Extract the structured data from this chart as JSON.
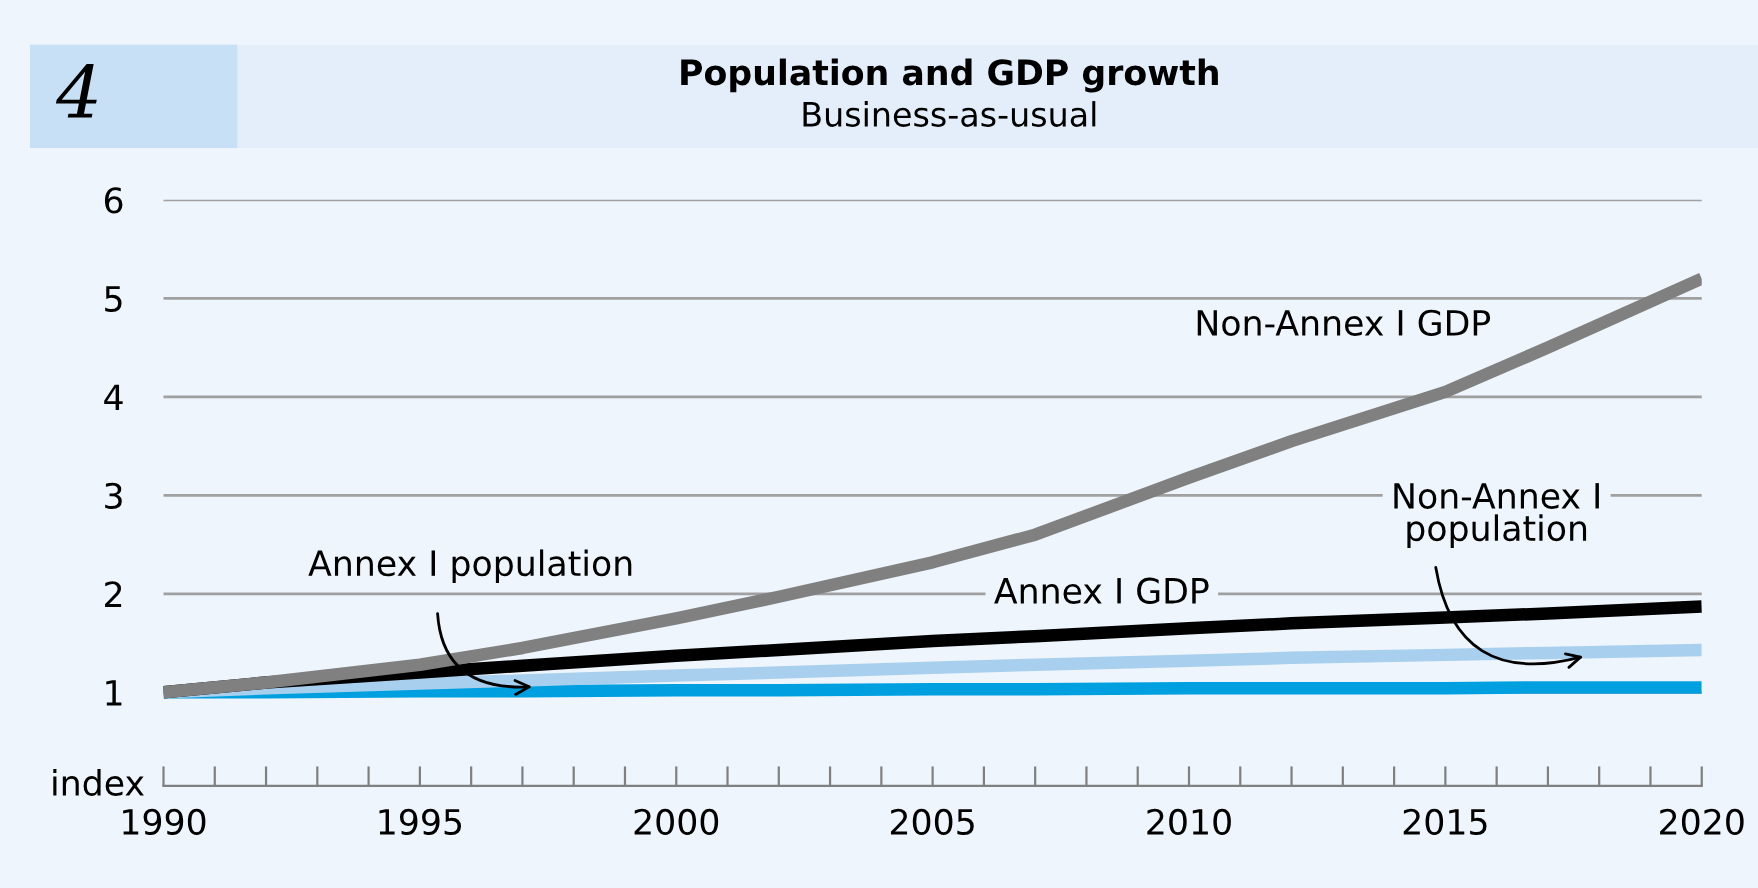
{
  "chart_data": {
    "type": "line",
    "title": "Population and GDP growth",
    "subtitle": "Business-as-usual",
    "ylabel": "index",
    "annotations": [
      "4"
    ],
    "x": [
      1990,
      1992,
      1995,
      1997,
      2000,
      2002,
      2005,
      2007,
      2010,
      2012,
      2015,
      2017,
      2020
    ],
    "series": [
      {
        "name": "Annex I population",
        "color": "#009fdf",
        "values": [
          1.0,
          1.0,
          1.01,
          1.01,
          1.02,
          1.02,
          1.03,
          1.03,
          1.04,
          1.04,
          1.04,
          1.05,
          1.05
        ]
      },
      {
        "name": "Non-Annex I population",
        "color": "#a8d0ee",
        "values": [
          1.0,
          1.04,
          1.09,
          1.12,
          1.17,
          1.2,
          1.25,
          1.28,
          1.32,
          1.35,
          1.38,
          1.4,
          1.43
        ]
      },
      {
        "name": "Annex I GDP",
        "color": "#000000",
        "values": [
          1.0,
          1.1,
          1.2,
          1.27,
          1.37,
          1.43,
          1.52,
          1.57,
          1.65,
          1.7,
          1.76,
          1.8,
          1.87
        ]
      },
      {
        "name": "Non-Annex I GDP",
        "color": "#808080",
        "values": [
          1.0,
          1.1,
          1.28,
          1.45,
          1.75,
          1.97,
          2.32,
          2.6,
          3.18,
          3.55,
          4.05,
          4.5,
          5.2
        ]
      }
    ],
    "xlim": [
      1990,
      2020
    ],
    "ylim": [
      0.05,
      6
    ],
    "xticks": [
      1990,
      {
        "value": 1991,
        "label": null
      },
      {
        "value": 1992,
        "label": null
      },
      {
        "value": 1993,
        "label": null
      },
      {
        "value": 1994,
        "label": null
      },
      1995,
      {
        "value": 1996,
        "label": null
      },
      {
        "value": 1997,
        "label": null
      },
      {
        "value": 1998,
        "label": null
      },
      {
        "value": 1999,
        "label": null
      },
      2000,
      {
        "value": 2001,
        "label": null
      },
      {
        "value": 2002,
        "label": null
      },
      {
        "value": 2003,
        "label": null
      },
      {
        "value": 2004,
        "label": null
      },
      2005,
      {
        "value": 2006,
        "label": null
      },
      {
        "value": 2007,
        "label": null
      },
      {
        "value": 2008,
        "label": null
      },
      {
        "value": 2009,
        "label": null
      },
      2010,
      {
        "value": 2011,
        "label": null
      },
      {
        "value": 2012,
        "label": null
      },
      {
        "value": 2013,
        "label": null
      },
      {
        "value": 2014,
        "label": null
      },
      2015,
      {
        "value": 2016,
        "label": null
      },
      {
        "value": 2017,
        "label": null
      },
      {
        "value": 2018,
        "label": null
      },
      {
        "value": 2019,
        "label": null
      },
      2020
    ],
    "yticks": [
      1,
      2,
      3,
      4,
      5,
      6
    ],
    "grid": "y",
    "legend": false,
    "marker": "none",
    "line_style": "solid"
  }
}
